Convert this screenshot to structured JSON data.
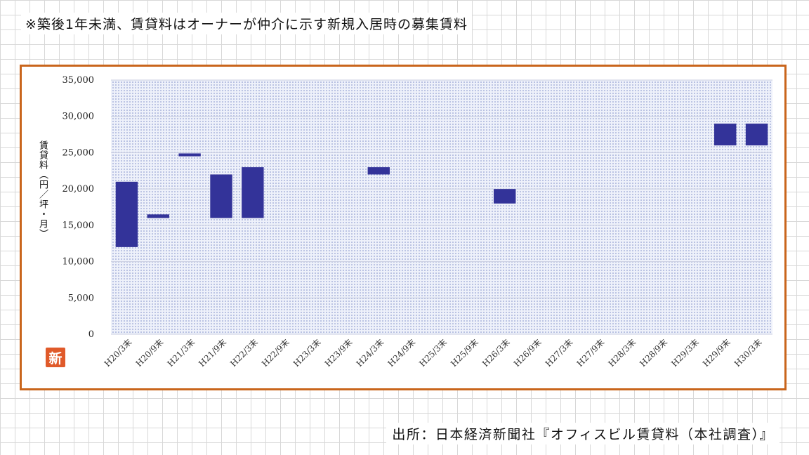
{
  "header": {
    "note": "※築後1年未満、賃貸料はオーナーが仲介に示す新規入居時の募集賃料"
  },
  "footer": {
    "source": "出所：日本経済新聞社『オフィスビル賃貸料（本社調査）』"
  },
  "badge": {
    "label": "新"
  },
  "colors": {
    "bar": "#333399",
    "frame": "#c9651c",
    "plot_bg": "#dde3f4"
  },
  "chart_data": {
    "type": "bar",
    "subtype": "floating-range",
    "ylabel": "賃貸料（円／坪・月）",
    "ylim": [
      0,
      35000
    ],
    "yticks": [
      0,
      5000,
      10000,
      15000,
      20000,
      25000,
      30000,
      35000
    ],
    "ytick_labels": [
      "0",
      "5,000",
      "10,000",
      "15,000",
      "20,000",
      "25,000",
      "30,000",
      "35,000"
    ],
    "grid": true,
    "categories": [
      "H20/3末",
      "H20/9末",
      "H21/3末",
      "H21/9末",
      "H22/3末",
      "H22/9末",
      "H23/3末",
      "H23/9末",
      "H24/3末",
      "H24/9末",
      "H25/3末",
      "H25/9末",
      "H26/3末",
      "H26/9末",
      "H27/3末",
      "H27/9末",
      "H28/3末",
      "H28/9末",
      "H29/3末",
      "H29/9末",
      "H30/3末"
    ],
    "ranges": [
      [
        12000,
        21000
      ],
      [
        16000,
        16500
      ],
      [
        24500,
        24900
      ],
      [
        16000,
        22000
      ],
      [
        16000,
        23000
      ],
      null,
      null,
      null,
      [
        22000,
        23000
      ],
      null,
      null,
      null,
      [
        18000,
        20000
      ],
      null,
      null,
      null,
      null,
      null,
      null,
      [
        26000,
        29000
      ],
      [
        26000,
        29000
      ]
    ]
  }
}
